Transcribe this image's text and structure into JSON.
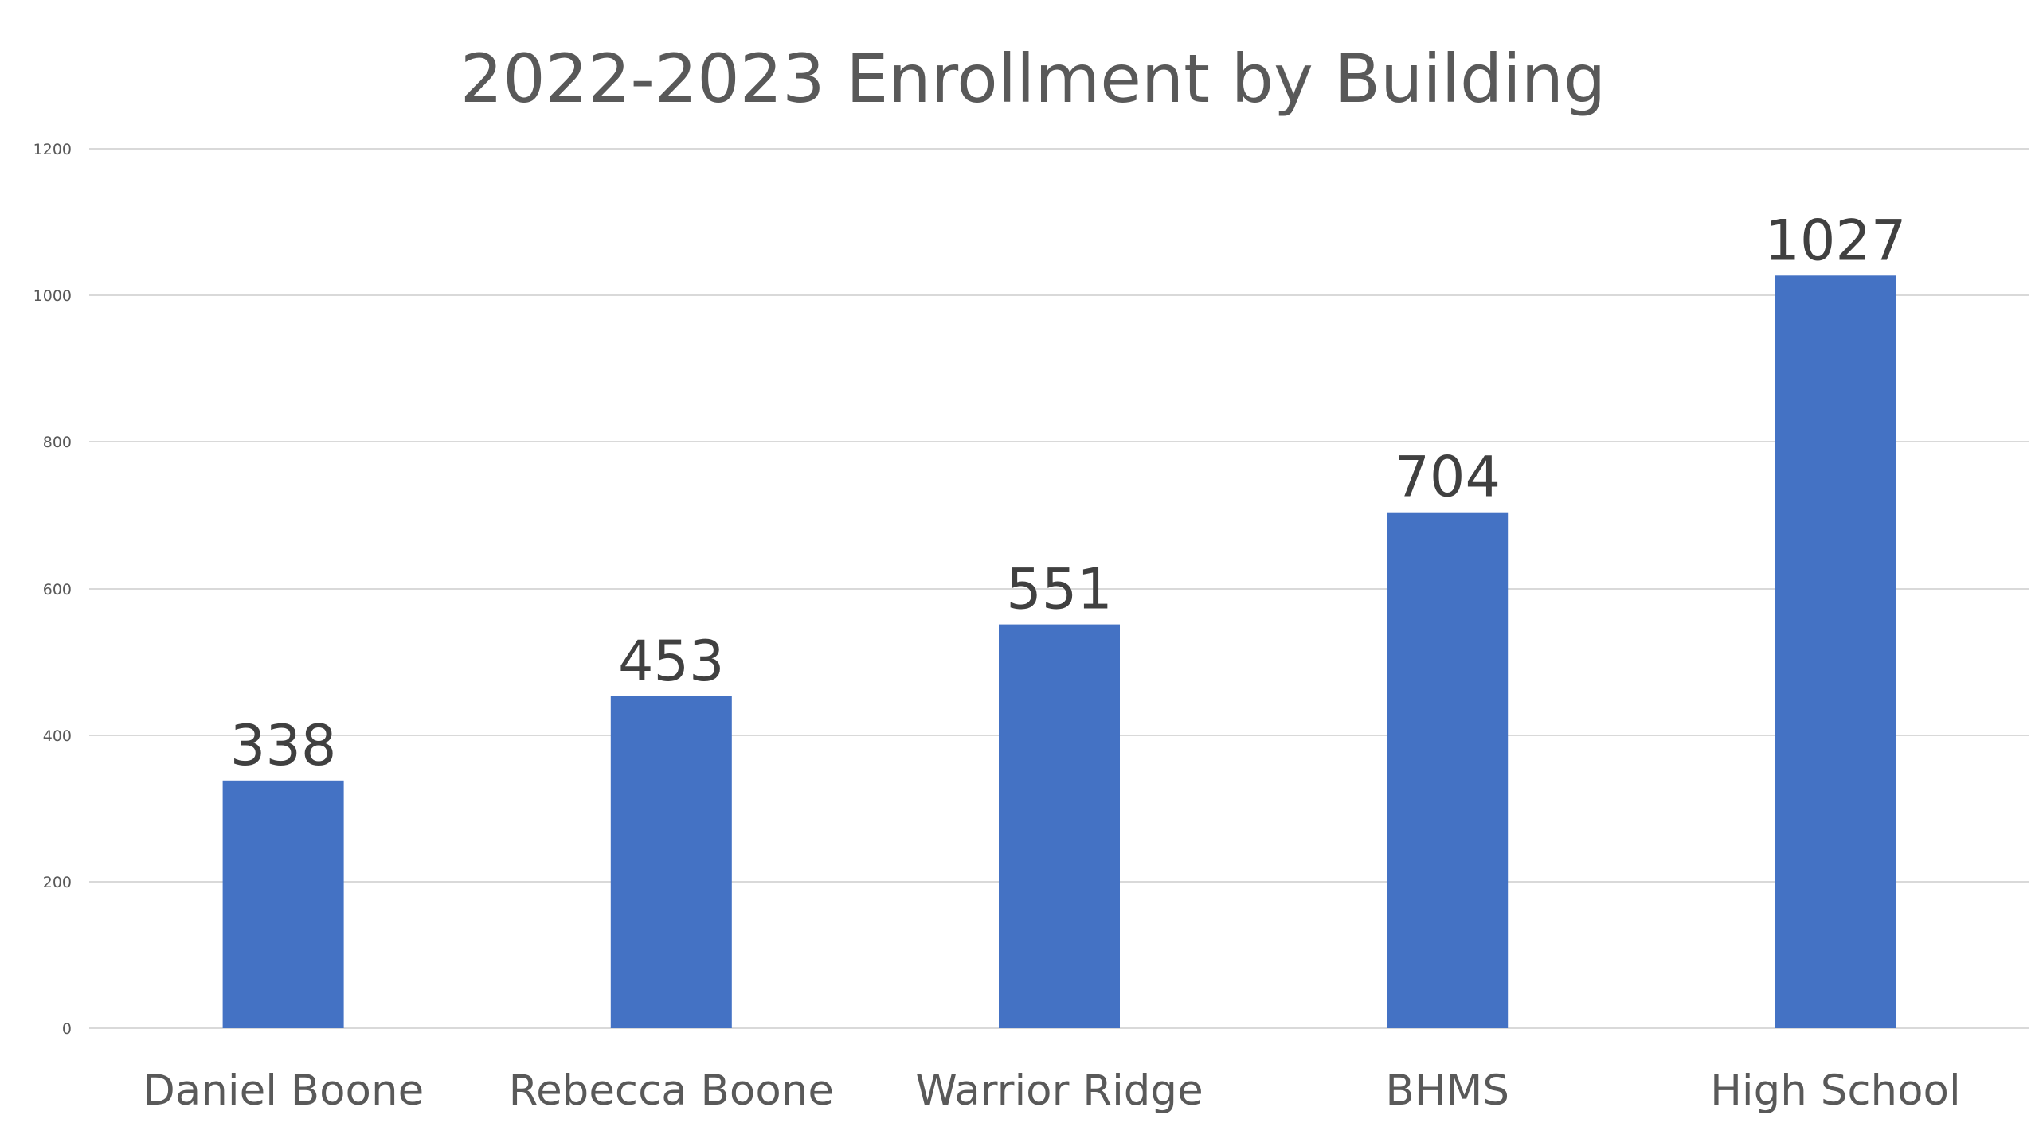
{
  "chart_data": {
    "type": "bar",
    "title": "2022-2023 Enrollment by Building",
    "xlabel": "",
    "ylabel": "",
    "categories": [
      "Daniel Boone",
      "Rebecca Boone",
      "Warrior Ridge",
      "BHMS",
      "High School"
    ],
    "values": [
      338,
      453,
      551,
      704,
      1027
    ],
    "data_labels": [
      "338",
      "453",
      "551",
      "704",
      "1027"
    ],
    "ylim": [
      0,
      1200
    ],
    "y_ticks": [
      0,
      200,
      400,
      600,
      800,
      1000,
      1200
    ],
    "y_tick_labels": [
      "0",
      "200",
      "400",
      "600",
      "800",
      "1000",
      "1200"
    ],
    "grid": true,
    "legend": "none",
    "colors": {
      "bar": "#4472C4",
      "gridline": "#D9D9D9",
      "title": "#595959",
      "axis_text": "#595959",
      "data_label": "#404040",
      "background": "#FFFFFF"
    }
  }
}
